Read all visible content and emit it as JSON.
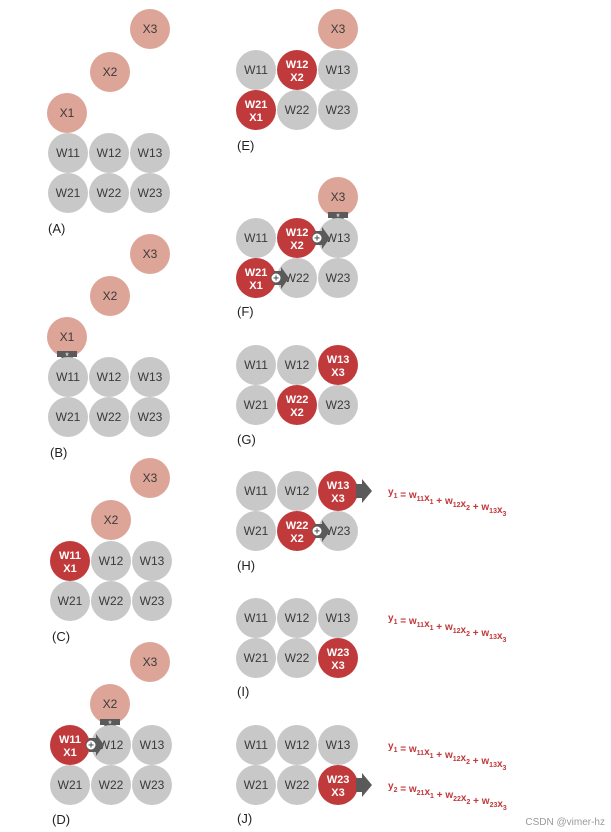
{
  "colors": {
    "gray_cell": "#c8c8c8",
    "input_pink": "#dca597",
    "active_red": "#c0393b",
    "arrow_gray": "#5a5a5a",
    "equation_red": "#c0393b"
  },
  "cell_labels": {
    "w11": "W11",
    "w12": "W12",
    "w13": "W13",
    "w21": "W21",
    "w22": "W22",
    "w23": "W23",
    "x1": "X1",
    "x2": "X2",
    "x3": "X3"
  },
  "panels": {
    "A": "(A)",
    "B": "(B)",
    "C": "(C)",
    "D": "(D)",
    "E": "(E)",
    "F": "(F)",
    "G": "(G)",
    "H": "(H)",
    "I": "(I)",
    "J": "(J)"
  },
  "operators": {
    "multiply": "*",
    "add": "+"
  },
  "equations": {
    "y1": {
      "y": "y",
      "y_sub": "1",
      "t1w": "w",
      "t1ws": "11",
      "t1x": "x",
      "t1xs": "1",
      "t2w": "w",
      "t2ws": "12",
      "t2x": "x",
      "t2xs": "2",
      "t3w": "w",
      "t3ws": "13",
      "t3x": "x",
      "t3xs": "3"
    },
    "y2": {
      "y": "y",
      "y_sub": "2",
      "t1w": "w",
      "t1ws": "21",
      "t1x": "x",
      "t1xs": "1",
      "t2w": "w",
      "t2ws": "22",
      "t2x": "x",
      "t2xs": "2",
      "t3w": "w",
      "t3ws": "23",
      "t3x": "x",
      "t3xs": "3"
    }
  },
  "watermark": "CSDN @vimer-hz"
}
